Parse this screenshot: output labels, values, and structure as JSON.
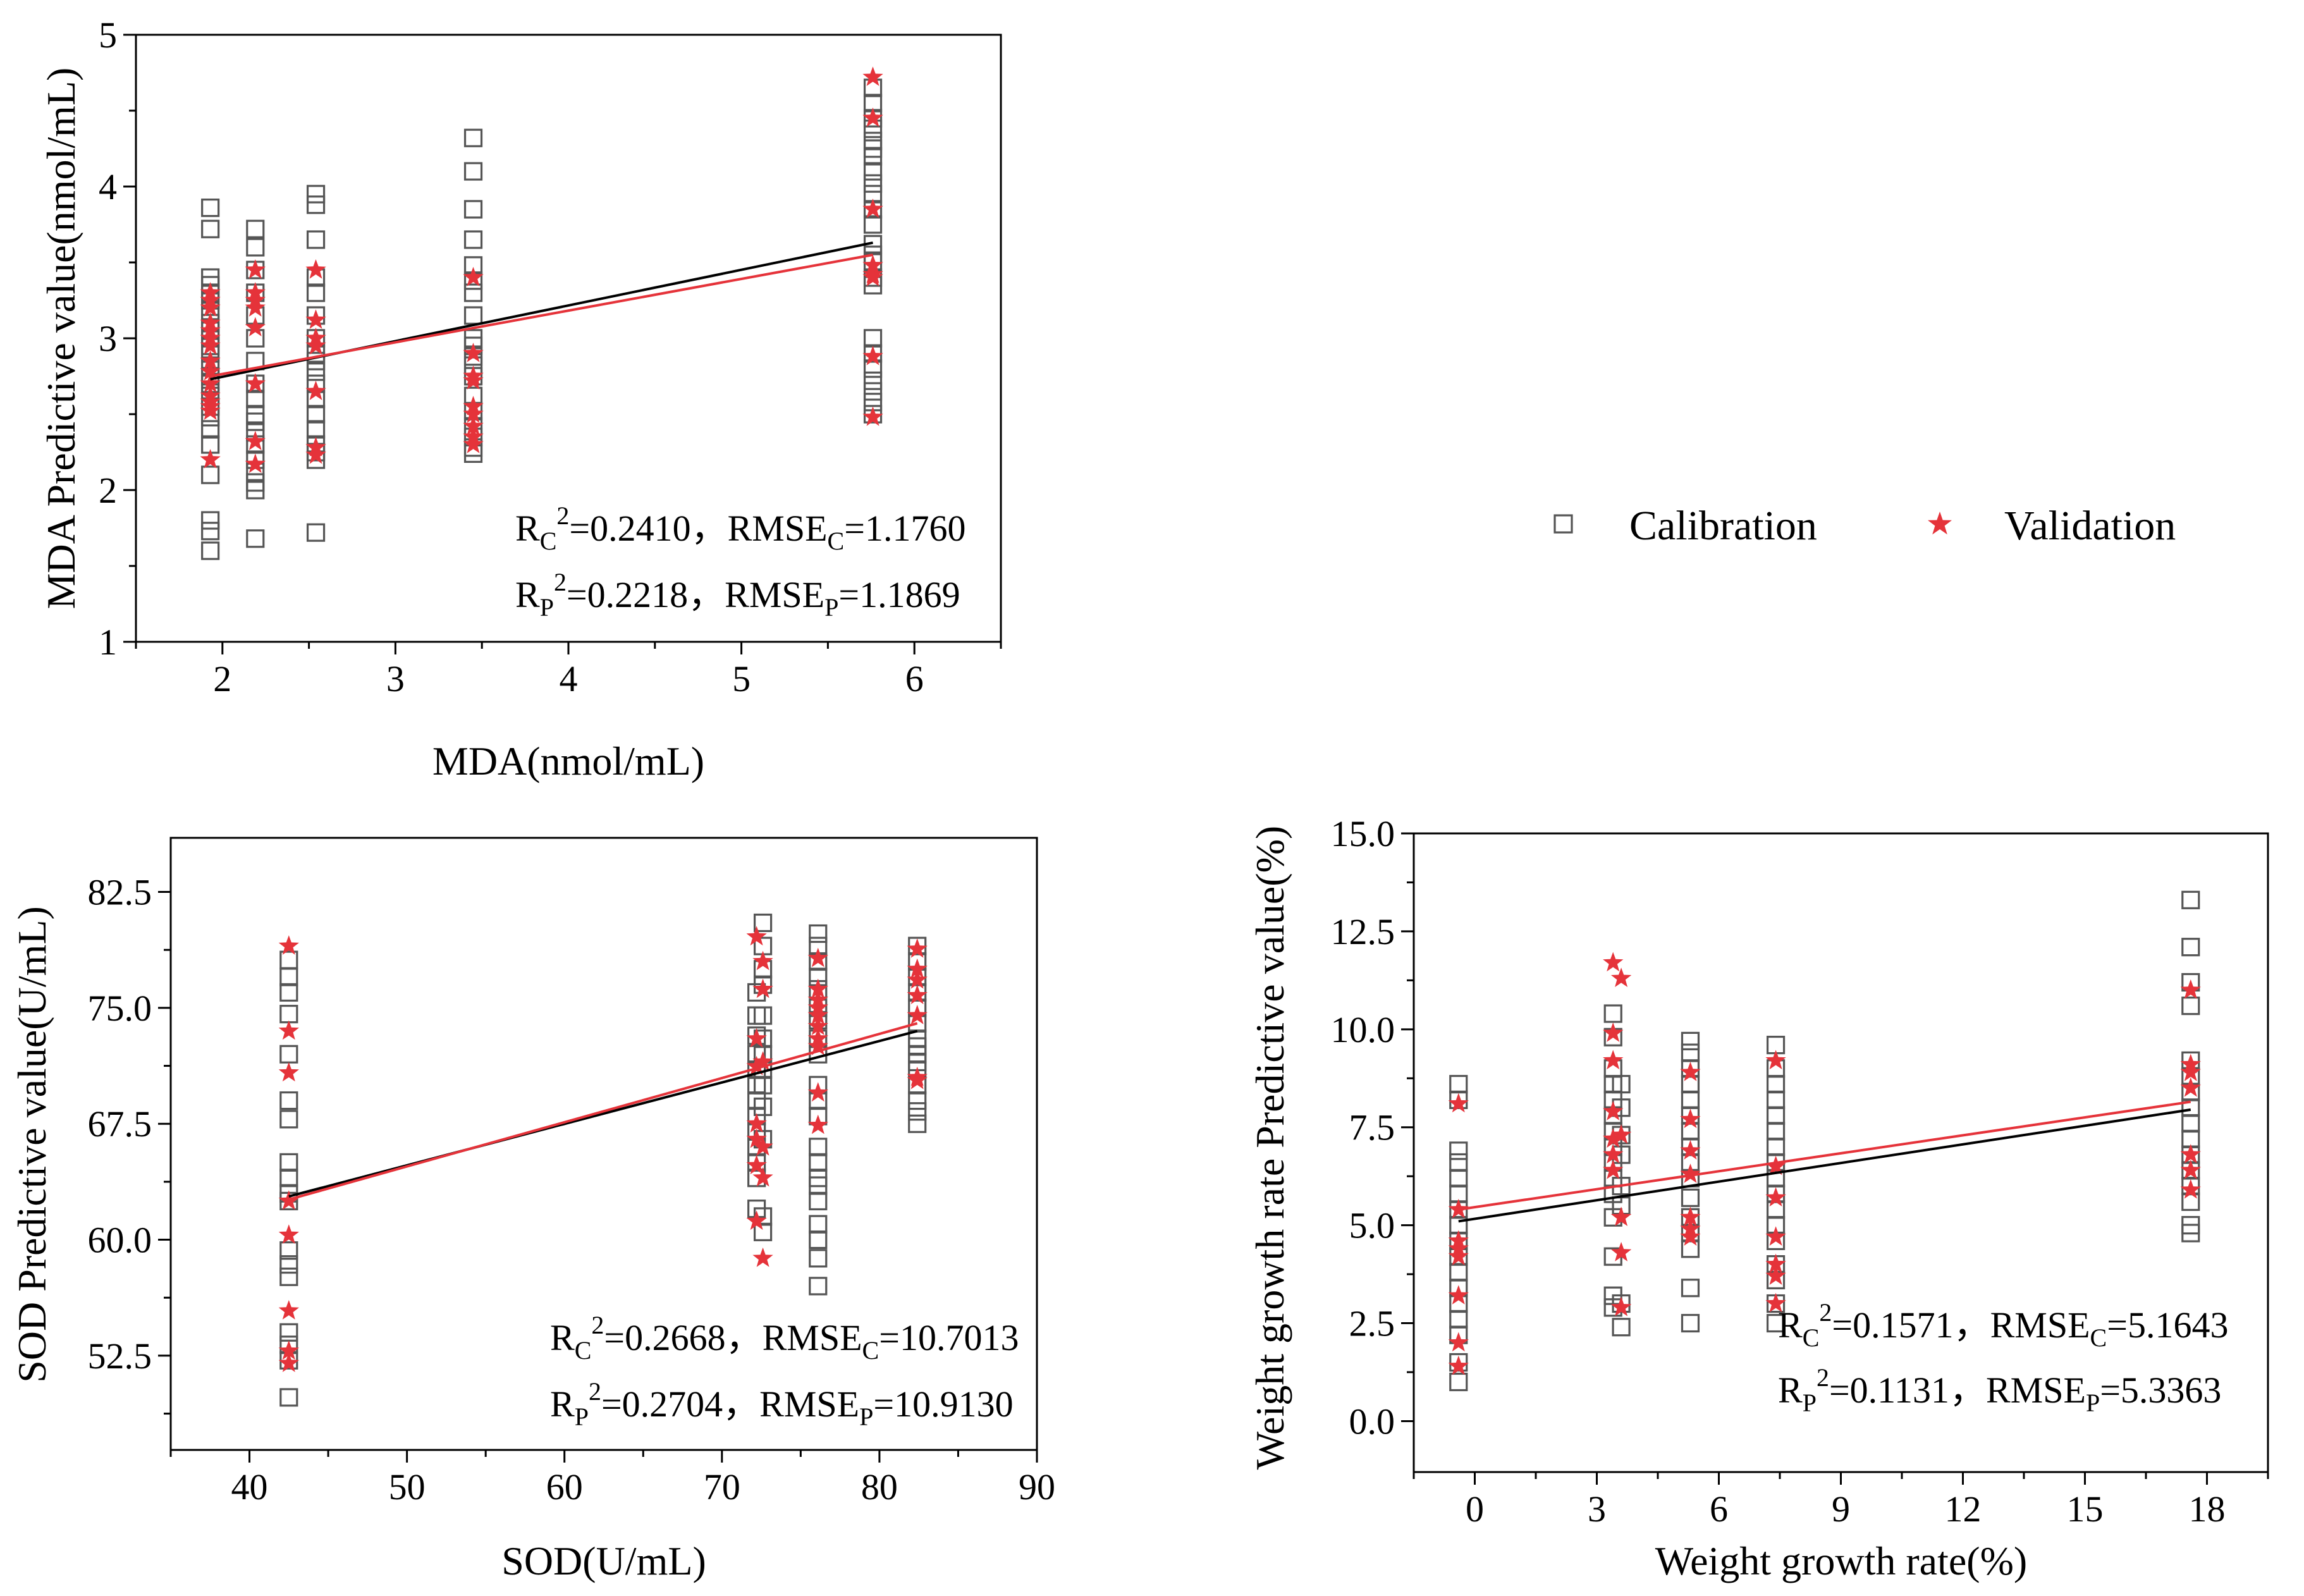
{
  "legend": {
    "items": [
      {
        "label": "Calibration",
        "marker": "square",
        "color": "#555555"
      },
      {
        "label": "Validation",
        "marker": "star",
        "color": "#e5333a"
      }
    ]
  },
  "colors": {
    "calibration_fit": "#000000",
    "validation_fit": "#e5333a"
  },
  "chart_data": [
    {
      "type": "scatter",
      "id": "mda",
      "xlabel": "MDA(nmol/mL)",
      "ylabel": "MDA Predictive value(nmol/mL)",
      "xlim": [
        1.5,
        6.5
      ],
      "ylim": [
        1,
        5
      ],
      "xticks": [
        2,
        3,
        4,
        5,
        6
      ],
      "xtick_labels": [
        "2",
        "3",
        "4",
        "5",
        "6"
      ],
      "xticks_minor": [
        1.5,
        2.5,
        3.5,
        4.5,
        5.5,
        6.5
      ],
      "yticks": [
        1,
        2,
        3,
        4,
        5
      ],
      "ytick_labels": [
        "1",
        "2",
        "3",
        "4",
        "5"
      ],
      "yticks_minor": [
        1.5,
        2.5,
        3.5,
        4.5
      ],
      "calibration": {
        "x": [
          1.93,
          1.93,
          1.93,
          1.93,
          1.93,
          1.93,
          1.93,
          1.93,
          1.93,
          1.93,
          1.93,
          1.93,
          1.93,
          1.93,
          1.93,
          1.93,
          1.93,
          1.93,
          1.93,
          1.93,
          1.93,
          1.93,
          1.93,
          1.93,
          2.19,
          2.19,
          2.19,
          2.19,
          2.19,
          2.19,
          2.19,
          2.19,
          2.19,
          2.19,
          2.19,
          2.19,
          2.19,
          2.19,
          2.19,
          2.19,
          2.19,
          2.19,
          2.54,
          2.54,
          2.54,
          2.54,
          2.54,
          2.54,
          2.54,
          2.54,
          2.54,
          2.54,
          2.54,
          2.54,
          2.54,
          2.54,
          2.54,
          2.54,
          2.54,
          2.54,
          3.45,
          3.45,
          3.45,
          3.45,
          3.45,
          3.45,
          3.45,
          3.45,
          3.45,
          3.45,
          3.45,
          3.45,
          3.45,
          3.45,
          3.45,
          3.45,
          3.45,
          3.45,
          3.45,
          5.76,
          5.76,
          5.76,
          5.76,
          5.76,
          5.76,
          5.76,
          5.76,
          5.76,
          5.76,
          5.76,
          5.76,
          5.76,
          5.76,
          5.76,
          5.76,
          5.76,
          5.76,
          5.76,
          5.76,
          5.76,
          5.76,
          5.76,
          5.76
        ],
        "y": [
          3.86,
          3.72,
          3.4,
          3.35,
          3.3,
          3.25,
          3.18,
          3.1,
          3.05,
          3.0,
          2.95,
          2.9,
          2.82,
          2.75,
          2.7,
          2.62,
          2.55,
          2.48,
          2.4,
          2.3,
          2.1,
          1.8,
          1.73,
          1.6,
          3.72,
          3.6,
          3.45,
          3.3,
          3.15,
          3.0,
          2.85,
          2.7,
          2.6,
          2.5,
          2.45,
          2.3,
          2.2,
          2.12,
          2.05,
          2.0,
          1.68,
          2.38,
          3.95,
          3.88,
          3.65,
          3.4,
          3.3,
          3.15,
          3.0,
          2.9,
          2.78,
          2.7,
          2.6,
          2.5,
          2.4,
          2.3,
          2.25,
          2.2,
          1.72,
          2.85,
          4.32,
          4.1,
          3.85,
          3.65,
          3.48,
          3.3,
          3.15,
          3.0,
          2.88,
          2.75,
          2.62,
          2.52,
          2.42,
          2.35,
          2.28,
          2.24,
          2.82,
          2.95,
          3.38,
          4.65,
          4.55,
          4.45,
          4.38,
          4.3,
          4.2,
          4.1,
          4.02,
          3.95,
          3.85,
          3.75,
          3.62,
          3.5,
          3.4,
          3.35,
          3.0,
          2.9,
          2.8,
          2.72,
          2.65,
          2.58,
          2.5,
          4.25,
          3.55
        ]
      },
      "validation": {
        "x": [
          1.93,
          1.93,
          1.93,
          1.93,
          1.93,
          1.93,
          1.93,
          1.93,
          1.93,
          1.93,
          1.93,
          1.93,
          1.93,
          1.93,
          1.93,
          2.19,
          2.19,
          2.19,
          2.19,
          2.19,
          2.19,
          2.19,
          2.19,
          2.54,
          2.54,
          2.54,
          2.54,
          2.54,
          2.54,
          2.54,
          3.45,
          3.45,
          3.45,
          3.45,
          3.45,
          3.45,
          3.45,
          3.45,
          3.45,
          5.76,
          5.76,
          5.76,
          5.76,
          5.76,
          5.76,
          5.76,
          5.76
        ],
        "y": [
          3.3,
          3.25,
          3.2,
          3.1,
          3.0,
          2.95,
          2.85,
          2.78,
          2.7,
          2.62,
          2.58,
          2.55,
          2.52,
          2.2,
          3.05,
          3.45,
          3.3,
          3.25,
          3.2,
          3.07,
          2.7,
          2.32,
          2.17,
          3.45,
          3.12,
          3.0,
          2.95,
          2.65,
          2.28,
          2.23,
          3.4,
          2.9,
          2.75,
          2.72,
          2.55,
          2.5,
          2.42,
          2.35,
          2.3,
          4.72,
          4.45,
          3.85,
          3.48,
          3.42,
          3.4,
          2.88,
          2.48
        ]
      },
      "annotations": {
        "rc_prefix": "R",
        "rc_sub": "C",
        "rc_sup": "2",
        "rc_value": "=0.2410，",
        "rmse_c_prefix": "RMSE",
        "rmse_c_sub": "C",
        "rmse_c_value": "=1.1760",
        "rp_prefix": "R",
        "rp_sub": "P",
        "rp_sup": "2",
        "rp_value": "=0.2218，",
        "rmse_p_prefix": "RMSE",
        "rmse_p_sub": "P",
        "rmse_p_value": "=1.1869"
      },
      "fit_calibration": {
        "x": [
          1.93,
          5.76
        ],
        "y": [
          2.73,
          3.63
        ]
      },
      "fit_validation": {
        "x": [
          1.93,
          5.76
        ],
        "y": [
          2.75,
          3.55
        ]
      }
    },
    {
      "type": "scatter",
      "id": "sod",
      "xlabel": "SOD(U/mL)",
      "ylabel": "SOD Predictive value(U/mL)",
      "xlim": [
        35,
        90
      ],
      "ylim": [
        46.4,
        86.0
      ],
      "xticks": [
        40,
        50,
        60,
        70,
        80,
        90
      ],
      "xtick_labels": [
        "40",
        "50",
        "60",
        "70",
        "80",
        "90"
      ],
      "xticks_minor": [
        35,
        45,
        55,
        65,
        75,
        85
      ],
      "yticks": [
        52.5,
        60.0,
        67.5,
        75.0,
        82.5
      ],
      "ytick_labels": [
        "52.5",
        "60.0",
        "67.5",
        "75.0",
        "82.5"
      ],
      "yticks_minor": [
        48.75,
        56.25,
        63.75,
        71.25,
        78.75
      ],
      "calibration": {
        "x": [
          42.5,
          42.5,
          42.5,
          42.5,
          42.5,
          42.5,
          42.5,
          42.5,
          42.5,
          42.5,
          42.5,
          42.5,
          42.5,
          42.5,
          42.5,
          42.5,
          42.5,
          42.5,
          72.2,
          72.2,
          72.2,
          72.2,
          72.2,
          72.2,
          72.2,
          72.2,
          72.2,
          72.2,
          72.2,
          72.2,
          72.2,
          72.6,
          72.6,
          72.6,
          72.6,
          72.6,
          72.6,
          72.6,
          72.6,
          72.6,
          72.6,
          72.6,
          72.6,
          72.6,
          76.1,
          76.1,
          76.1,
          76.1,
          76.1,
          76.1,
          76.1,
          76.1,
          76.1,
          76.1,
          76.1,
          76.1,
          76.1,
          76.1,
          76.1,
          76.1,
          76.1,
          76.1,
          76.1,
          76.1,
          76.1,
          82.4,
          82.4,
          82.4,
          82.4,
          82.4,
          82.4,
          82.4,
          82.4,
          82.4,
          82.4,
          82.4,
          82.4,
          82.4,
          82.4,
          82.4
        ],
        "y": [
          78.1,
          77.0,
          76.0,
          74.6,
          72.0,
          69.0,
          67.8,
          65.0,
          64.0,
          63.0,
          62.5,
          59.3,
          58.4,
          57.6,
          54.0,
          53.2,
          52.2,
          49.8,
          76.0,
          74.5,
          73.2,
          72.0,
          71.0,
          70.0,
          69.0,
          68.0,
          67.0,
          66.0,
          65.0,
          64.0,
          62.0,
          80.5,
          79.0,
          77.5,
          76.5,
          74.5,
          73.0,
          72.0,
          71.0,
          70.0,
          68.6,
          66.5,
          61.5,
          60.5,
          79.8,
          79.0,
          78.0,
          77.0,
          76.2,
          75.0,
          74.2,
          73.0,
          72.0,
          70.0,
          69.0,
          68.0,
          66.0,
          65.0,
          63.5,
          62.5,
          61.0,
          60.0,
          58.8,
          57.0,
          64.0,
          79.0,
          78.0,
          77.0,
          76.0,
          75.0,
          74.0,
          73.0,
          72.0,
          71.0,
          70.0,
          69.0,
          68.3,
          67.5,
          71.5,
          72.5
        ]
      },
      "validation": {
        "x": [
          42.5,
          42.5,
          42.5,
          42.5,
          42.5,
          42.5,
          42.5,
          42.5,
          72.2,
          72.2,
          72.2,
          72.2,
          72.2,
          72.2,
          72.2,
          72.6,
          72.6,
          72.6,
          72.6,
          72.6,
          72.6,
          76.1,
          76.1,
          76.1,
          76.1,
          76.1,
          76.1,
          76.1,
          76.1,
          76.1,
          76.1,
          82.4,
          82.4,
          82.4,
          82.4,
          82.4,
          82.4,
          82.4
        ],
        "y": [
          79.0,
          73.5,
          70.8,
          62.5,
          60.3,
          55.4,
          52.8,
          52.0,
          79.6,
          73.0,
          71.2,
          67.5,
          66.5,
          64.8,
          61.2,
          78.0,
          76.2,
          71.5,
          66.0,
          64.0,
          58.8,
          78.2,
          76.2,
          75.5,
          75.0,
          74.5,
          73.8,
          73.0,
          72.5,
          69.5,
          67.4,
          78.8,
          77.5,
          76.8,
          75.8,
          74.5,
          70.5,
          70.3
        ]
      },
      "annotations": {
        "rc_prefix": "R",
        "rc_sub": "C",
        "rc_sup": "2",
        "rc_value": "=0.2668，",
        "rmse_c_prefix": "RMSE",
        "rmse_c_sub": "C",
        "rmse_c_value": "=10.7013",
        "rp_prefix": "R",
        "rp_sub": "P",
        "rp_sup": "2",
        "rp_value": "=0.2704，",
        "rmse_p_prefix": "RMSE",
        "rmse_p_sub": "P",
        "rmse_p_value": "=10.9130"
      },
      "fit_calibration": {
        "x": [
          42.5,
          82.4
        ],
        "y": [
          62.8,
          73.5
        ]
      },
      "fit_validation": {
        "x": [
          42.5,
          82.4
        ],
        "y": [
          62.6,
          74.0
        ]
      }
    },
    {
      "type": "scatter",
      "id": "weight",
      "xlabel": "Weight growth rate(%)",
      "ylabel": "Weight growth rate Predictive value(%)",
      "xlim": [
        -1.5,
        19.5
      ],
      "ylim": [
        -1.3,
        15.0
      ],
      "xticks": [
        0,
        3,
        6,
        9,
        12,
        15,
        18
      ],
      "xtick_labels": [
        "0",
        "3",
        "6",
        "9",
        "12",
        "15",
        "18"
      ],
      "xticks_minor": [
        -1.5,
        1.5,
        4.5,
        7.5,
        10.5,
        13.5,
        16.5,
        19.5
      ],
      "yticks": [
        0.0,
        2.5,
        5.0,
        7.5,
        10.0,
        12.5,
        15.0
      ],
      "ytick_labels": [
        "0.0",
        "2.5",
        "5.0",
        "7.5",
        "10.0",
        "12.5",
        "15.0"
      ],
      "yticks_minor": [
        1.25,
        3.75,
        6.25,
        8.75,
        11.25,
        13.75
      ],
      "calibration": {
        "x": [
          -0.4,
          -0.4,
          -0.4,
          -0.4,
          -0.4,
          -0.4,
          -0.4,
          -0.4,
          -0.4,
          -0.4,
          -0.4,
          -0.4,
          -0.4,
          -0.4,
          -0.4,
          -0.4,
          -0.4,
          3.4,
          3.4,
          3.4,
          3.4,
          3.4,
          3.4,
          3.4,
          3.4,
          3.4,
          3.4,
          3.4,
          3.4,
          3.4,
          3.4,
          3.4,
          3.6,
          3.6,
          3.6,
          3.6,
          3.6,
          3.6,
          3.6,
          3.6,
          5.3,
          5.3,
          5.3,
          5.3,
          5.3,
          5.3,
          5.3,
          5.3,
          5.3,
          5.3,
          5.3,
          5.3,
          5.3,
          5.3,
          5.3,
          5.3,
          7.4,
          7.4,
          7.4,
          7.4,
          7.4,
          7.4,
          7.4,
          7.4,
          7.4,
          7.4,
          7.4,
          7.4,
          7.4,
          7.4,
          7.4,
          7.4,
          7.4,
          17.6,
          17.6,
          17.6,
          17.6,
          17.6,
          17.6,
          17.6,
          17.6,
          17.6,
          17.6,
          17.6,
          17.6,
          17.6,
          17.6,
          17.6,
          17.6
        ],
        "y": [
          8.6,
          8.2,
          6.9,
          6.6,
          6.2,
          5.8,
          5.4,
          5.0,
          4.6,
          4.2,
          3.8,
          3.4,
          3.0,
          2.6,
          2.2,
          1.5,
          1.0,
          10.4,
          9.8,
          9.0,
          8.6,
          8.2,
          7.8,
          7.4,
          7.0,
          6.6,
          6.2,
          5.8,
          5.2,
          4.2,
          3.2,
          2.9,
          8.6,
          8.0,
          7.3,
          6.8,
          6.0,
          5.5,
          3.0,
          2.4,
          9.7,
          9.4,
          9.0,
          8.6,
          8.2,
          7.8,
          7.4,
          7.0,
          6.6,
          6.2,
          5.7,
          5.2,
          4.8,
          4.4,
          3.4,
          2.5,
          9.6,
          9.0,
          8.6,
          8.2,
          7.8,
          7.4,
          7.0,
          6.6,
          6.2,
          5.8,
          5.4,
          5.0,
          4.6,
          4.0,
          3.6,
          3.0,
          2.5,
          13.3,
          12.1,
          11.2,
          10.6,
          9.2,
          8.8,
          8.4,
          8.0,
          7.6,
          7.2,
          6.8,
          6.4,
          6.0,
          5.6,
          5.0,
          4.8
        ]
      },
      "validation": {
        "x": [
          -0.4,
          -0.4,
          -0.4,
          -0.4,
          -0.4,
          -0.4,
          -0.4,
          -0.4,
          3.4,
          3.4,
          3.4,
          3.4,
          3.4,
          3.4,
          3.4,
          3.6,
          3.6,
          3.6,
          3.6,
          3.6,
          5.3,
          5.3,
          5.3,
          5.3,
          5.3,
          5.3,
          5.3,
          7.4,
          7.4,
          7.4,
          7.4,
          7.4,
          7.4,
          7.4,
          17.6,
          17.6,
          17.6,
          17.6,
          17.6,
          17.6,
          17.6
        ],
        "y": [
          8.1,
          5.4,
          4.4,
          4.2,
          3.2,
          2.0,
          1.4,
          4.6,
          11.7,
          9.9,
          9.2,
          7.9,
          7.2,
          6.8,
          6.4,
          11.3,
          7.3,
          5.2,
          4.3,
          2.9,
          8.9,
          7.7,
          6.9,
          6.3,
          5.2,
          4.9,
          4.7,
          9.2,
          6.5,
          5.7,
          4.7,
          4.0,
          3.7,
          3.0,
          11.0,
          9.1,
          8.9,
          8.5,
          6.8,
          6.4,
          5.9
        ]
      },
      "annotations": {
        "rc_prefix": "R",
        "rc_sub": "C",
        "rc_sup": "2",
        "rc_value": "=0.1571，",
        "rmse_c_prefix": "RMSE",
        "rmse_c_sub": "C",
        "rmse_c_value": "=5.1643",
        "rp_prefix": "R",
        "rp_sub": "P",
        "rp_sup": "2",
        "rp_value": "=0.1131，",
        "rmse_p_prefix": "RMSE",
        "rmse_p_sub": "P",
        "rmse_p_value": "=5.3363"
      },
      "fit_calibration": {
        "x": [
          -0.4,
          17.6
        ],
        "y": [
          5.1,
          7.95
        ]
      },
      "fit_validation": {
        "x": [
          -0.4,
          17.6
        ],
        "y": [
          5.4,
          8.15
        ]
      }
    }
  ]
}
